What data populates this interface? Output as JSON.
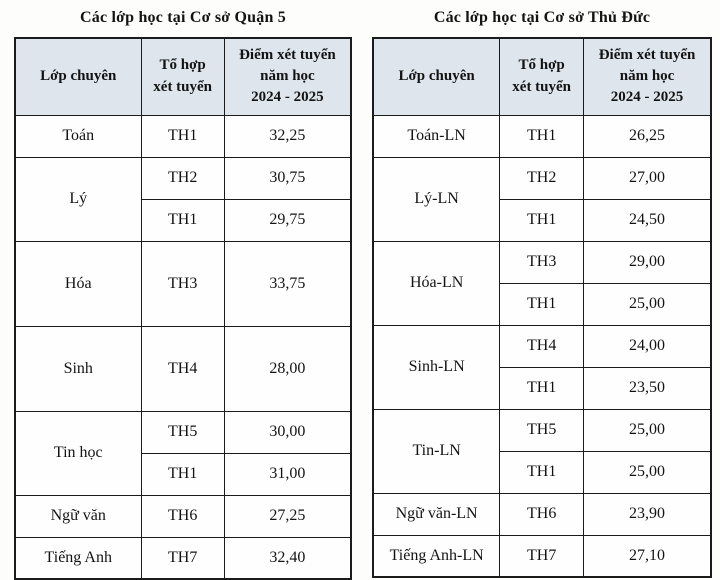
{
  "colors": {
    "header_bg": "#dee5ec",
    "border": "#1b1b1b",
    "text": "#131313",
    "page_bg": "#fdfdfc"
  },
  "tables": [
    {
      "title": "Các lớp học tại Cơ sở Quận 5",
      "headers": [
        {
          "lines": [
            "Lớp chuyên"
          ]
        },
        {
          "lines": [
            "Tổ hợp",
            "xét tuyển"
          ]
        },
        {
          "lines": [
            "Điểm xét tuyển",
            "năm học",
            "2024 - 2025"
          ]
        }
      ],
      "rows": [
        {
          "class_name": "Toán",
          "tall": false,
          "entries": [
            {
              "combo": "TH1",
              "score": "32,25"
            }
          ]
        },
        {
          "class_name": "Lý",
          "tall": false,
          "entries": [
            {
              "combo": "TH2",
              "score": "30,75"
            },
            {
              "combo": "TH1",
              "score": "29,75"
            }
          ]
        },
        {
          "class_name": "Hóa",
          "tall": true,
          "entries": [
            {
              "combo": "TH3",
              "score": "33,75"
            }
          ]
        },
        {
          "class_name": "Sinh",
          "tall": true,
          "entries": [
            {
              "combo": "TH4",
              "score": "28,00"
            }
          ]
        },
        {
          "class_name": "Tin học",
          "tall": false,
          "entries": [
            {
              "combo": "TH5",
              "score": "30,00"
            },
            {
              "combo": "TH1",
              "score": "31,00"
            }
          ]
        },
        {
          "class_name": "Ngữ văn",
          "tall": false,
          "entries": [
            {
              "combo": "TH6",
              "score": "27,25"
            }
          ]
        },
        {
          "class_name": "Tiếng Anh",
          "tall": false,
          "entries": [
            {
              "combo": "TH7",
              "score": "32,40"
            }
          ]
        }
      ]
    },
    {
      "title": "Các lớp học tại Cơ sở Thủ Đức",
      "headers": [
        {
          "lines": [
            "Lớp chuyên"
          ]
        },
        {
          "lines": [
            "Tổ hợp",
            "xét tuyển"
          ]
        },
        {
          "lines": [
            "Điểm xét tuyển",
            "năm học",
            "2024 - 2025"
          ]
        }
      ],
      "rows": [
        {
          "class_name": "Toán-LN",
          "tall": false,
          "entries": [
            {
              "combo": "TH1",
              "score": "26,25"
            }
          ]
        },
        {
          "class_name": "Lý-LN",
          "tall": false,
          "entries": [
            {
              "combo": "TH2",
              "score": "27,00"
            },
            {
              "combo": "TH1",
              "score": "24,50"
            }
          ]
        },
        {
          "class_name": "Hóa-LN",
          "tall": false,
          "entries": [
            {
              "combo": "TH3",
              "score": "29,00"
            },
            {
              "combo": "TH1",
              "score": "25,00"
            }
          ]
        },
        {
          "class_name": "Sinh-LN",
          "tall": false,
          "entries": [
            {
              "combo": "TH4",
              "score": "24,00"
            },
            {
              "combo": "TH1",
              "score": "23,50"
            }
          ]
        },
        {
          "class_name": "Tin-LN",
          "tall": false,
          "entries": [
            {
              "combo": "TH5",
              "score": "25,00"
            },
            {
              "combo": "TH1",
              "score": "25,00"
            }
          ]
        },
        {
          "class_name": "Ngữ văn-LN",
          "tall": false,
          "entries": [
            {
              "combo": "TH6",
              "score": "23,90"
            }
          ]
        },
        {
          "class_name": "Tiếng Anh-LN",
          "tall": false,
          "entries": [
            {
              "combo": "TH7",
              "score": "27,10"
            }
          ]
        }
      ]
    }
  ]
}
